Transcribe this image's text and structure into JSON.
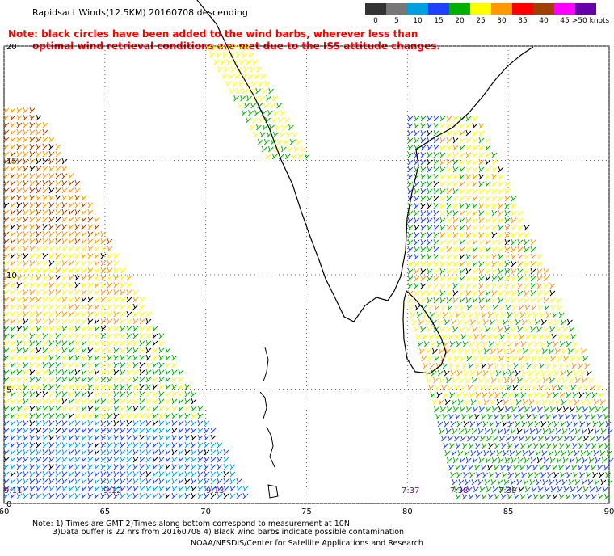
{
  "title": "Rapidsact Winds(12.5KM) 20160708 descending",
  "note_line1": "Note: black circles have been added to the wind barbs, wherever less than",
  "note_line2": "optimal wind retrieval conditions are met due to the ISS attitude changes.",
  "speed_scale": {
    "labels": [
      "0",
      "5",
      "10",
      "15",
      "20",
      "25",
      "30",
      "35",
      "40",
      "45",
      ">50 knots"
    ],
    "colors": [
      "#333333",
      "#777777",
      "#00a0e0",
      "#2040ff",
      "#00b000",
      "#ffff00",
      "#ff9900",
      "#ff0000",
      "#a04000",
      "#ff00ff",
      "#6600aa"
    ]
  },
  "axes": {
    "lon_labels": [
      "60",
      "65",
      "70",
      "75",
      "80",
      "85",
      "90"
    ],
    "lat_labels": [
      "20",
      "15",
      "10",
      "5",
      "0"
    ]
  },
  "pass_times": [
    "9:11",
    "9:12",
    "9:13",
    "7:37",
    "7:38",
    "7:39"
  ],
  "footer": {
    "line1": "Note: 1) Times are GMT 2)Times along bottom correspond to measurement at 10N",
    "line2": "3)Data buffer is 22 hrs from 20160708 4) Black wind barbs indicate possible contamination",
    "line3": "NOAA/NESDIS/Center for Satellite Applications and Research"
  },
  "map": {
    "projection": "lat-lon",
    "lon_range": [
      60,
      90
    ],
    "lat_range": [
      0,
      20
    ],
    "grid": "dotted"
  }
}
